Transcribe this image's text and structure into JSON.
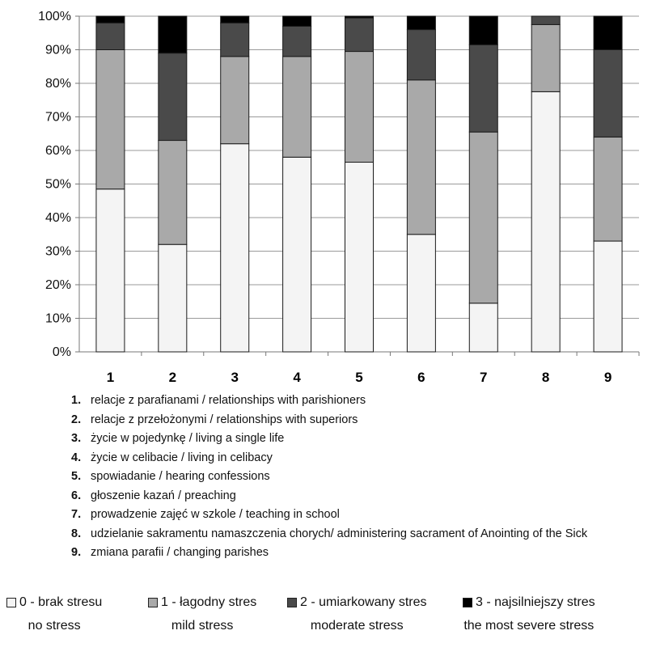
{
  "chart_data": {
    "type": "bar",
    "stacked": true,
    "percent": true,
    "categories": [
      "1",
      "2",
      "3",
      "4",
      "5",
      "6",
      "7",
      "8",
      "9"
    ],
    "ylim": [
      0,
      100
    ],
    "yticks": [
      "0%",
      "10%",
      "20%",
      "30%",
      "40%",
      "50%",
      "60%",
      "70%",
      "80%",
      "90%",
      "100%"
    ],
    "grid": true,
    "series": [
      {
        "name": "0 - brak stresu",
        "subtitle": "no stress",
        "color": "#f4f4f4",
        "values": [
          48.5,
          32,
          62,
          58,
          56.5,
          35,
          14.5,
          77.5,
          33
        ]
      },
      {
        "name": "1 - łagodny stres",
        "subtitle": "mild stress",
        "color": "#a9a9a9",
        "values": [
          41.5,
          31,
          26,
          30,
          33,
          46,
          51,
          20,
          31
        ]
      },
      {
        "name": "2 - umiarkowany stres",
        "subtitle": "moderate stress",
        "color": "#4a4a4a",
        "values": [
          8,
          26,
          10,
          9,
          10,
          15,
          26,
          2.5,
          26
        ]
      },
      {
        "name": "3 - najsilniejszy stres",
        "subtitle": "the most severe stress",
        "color": "#000000",
        "values": [
          2,
          11,
          2,
          3,
          0.5,
          4,
          8.5,
          0,
          10
        ]
      }
    ]
  },
  "categories_list": [
    {
      "num": "1.",
      "text": "relacje z parafianami / relationships with parishioners"
    },
    {
      "num": "2.",
      "text": "relacje z przełożonymi / relationships with superiors"
    },
    {
      "num": "3.",
      "text": "życie w pojedynkę / living a single life"
    },
    {
      "num": "4.",
      "text": "życie w celibacie / living in celibacy"
    },
    {
      "num": "5.",
      "text": "spowiadanie / hearing confessions"
    },
    {
      "num": "6.",
      "text": "głoszenie kazań / preaching"
    },
    {
      "num": "7.",
      "text": "prowadzenie zajęć w szkole / teaching in school"
    },
    {
      "num": "8.",
      "text": "udzielanie sakramentu namaszczenia chorych/ administering sacrament of Anointing of the Sick"
    },
    {
      "num": "9.",
      "text": "zmiana parafii / changing parishes"
    }
  ]
}
